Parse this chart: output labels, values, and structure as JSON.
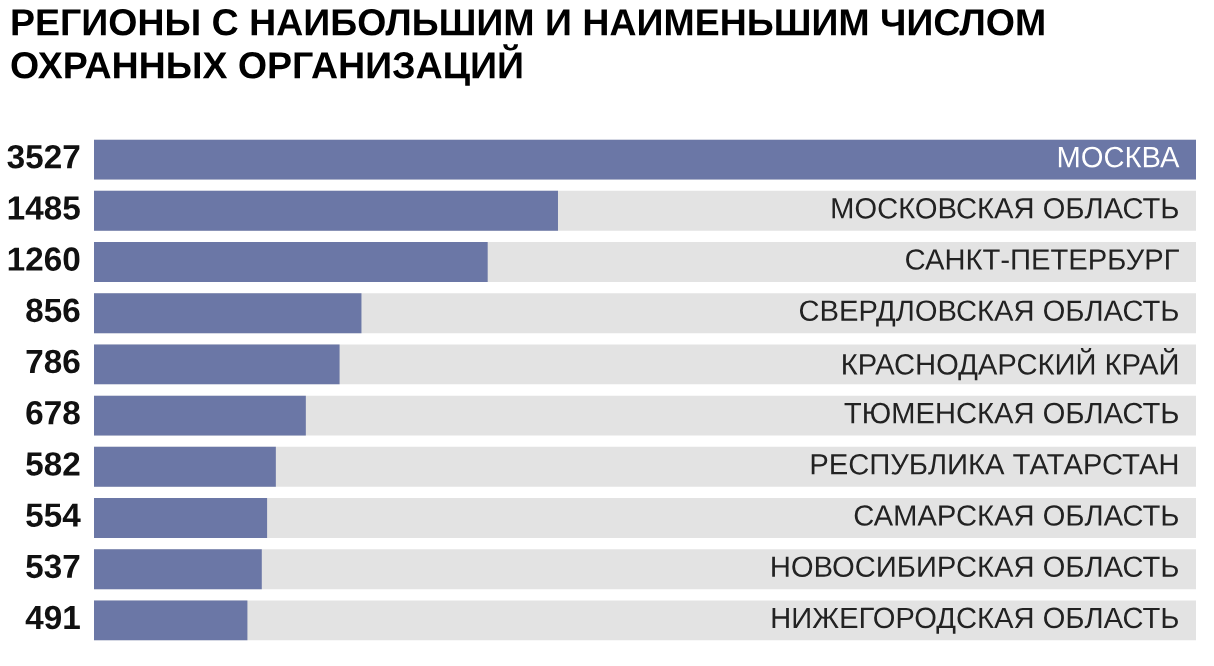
{
  "chart_data": {
    "type": "bar",
    "orientation": "horizontal",
    "title": "РЕГИОНЫ С НАИБОЛЬШИМ И НАИМЕНЬШИМ ЧИСЛОМ\nОХРАННЫХ ОРГАНИЗАЦИЙ",
    "categories": [
      "МОСКВА",
      "МОСКОВСКАЯ ОБЛАСТЬ",
      "САНКТ-ПЕТЕРБУРГ",
      "СВЕРДЛОВСКАЯ ОБЛАСТЬ",
      "КРАСНОДАРСКИЙ КРАЙ",
      "ТЮМЕНСКАЯ ОБЛАСТЬ",
      "РЕСПУБЛИКА ТАТАРСТАН",
      "САМАРСКАЯ ОБЛАСТЬ",
      "НОВОСИБИРСКАЯ ОБЛАСТЬ",
      "НИЖЕГОРОДСКАЯ ОБЛАСТЬ"
    ],
    "values": [
      3527,
      1485,
      1260,
      856,
      786,
      678,
      582,
      554,
      537,
      491
    ],
    "color": "#6b77a6",
    "xlim": [
      0,
      3527
    ],
    "data_labels": true
  }
}
